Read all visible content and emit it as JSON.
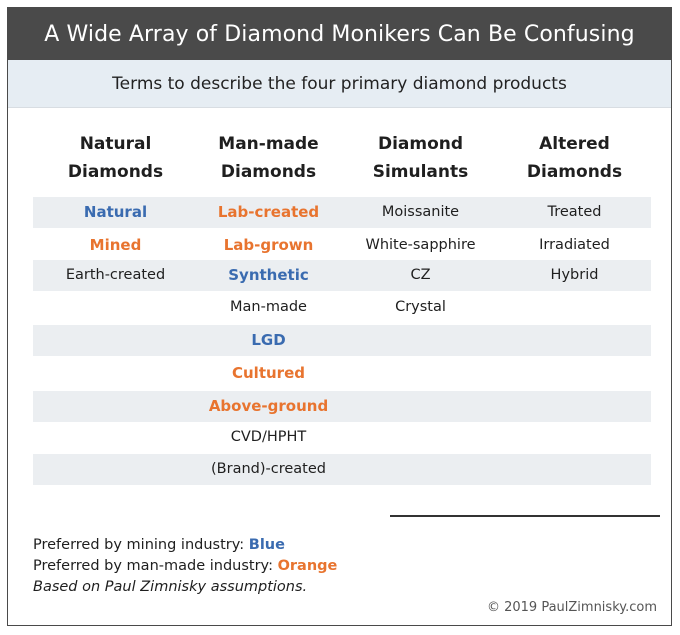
{
  "title": "A Wide Array of Diamond Monikers Can Be Confusing",
  "subtitle": "Terms to describe the four primary diamond products",
  "colors": {
    "mining_blue": "#3a6bb0",
    "manmade_orange": "#e8742f",
    "title_bg": "#4a4a4a",
    "subtitle_bg": "#e6edf3",
    "row_shade": "#ebeef1"
  },
  "columns": [
    {
      "line1": "Natural",
      "line2": "Diamonds"
    },
    {
      "line1": "Man-made",
      "line2": "Diamonds"
    },
    {
      "line1": "Diamond",
      "line2": "Simulants"
    },
    {
      "line1": "Altered",
      "line2": "Diamonds"
    }
  ],
  "rows": [
    [
      "Natural",
      "Lab-created",
      "Moissanite",
      "Treated"
    ],
    [
      "Mined",
      "Lab-grown",
      "White-sapphire",
      "Irradiated"
    ],
    [
      "Earth-created",
      "Synthetic",
      "CZ",
      "Hybrid"
    ],
    [
      "",
      "Man-made",
      "Crystal",
      ""
    ],
    [
      "",
      "LGD",
      "",
      ""
    ],
    [
      "",
      "Cultured",
      "",
      ""
    ],
    [
      "",
      "Above-ground",
      "",
      ""
    ],
    [
      "",
      "CVD/HPHT",
      "",
      ""
    ],
    [
      "",
      "(Brand)-created",
      "",
      ""
    ]
  ],
  "legend": {
    "mining_prefix": "Preferred by mining industry: ",
    "mining_word": "Blue",
    "manmade_prefix": "Preferred by man-made industry: ",
    "manmade_word": "Orange",
    "note": "Based on Paul Zimnisky assumptions."
  },
  "copyright": "© 2019 PaulZimnisky.com"
}
